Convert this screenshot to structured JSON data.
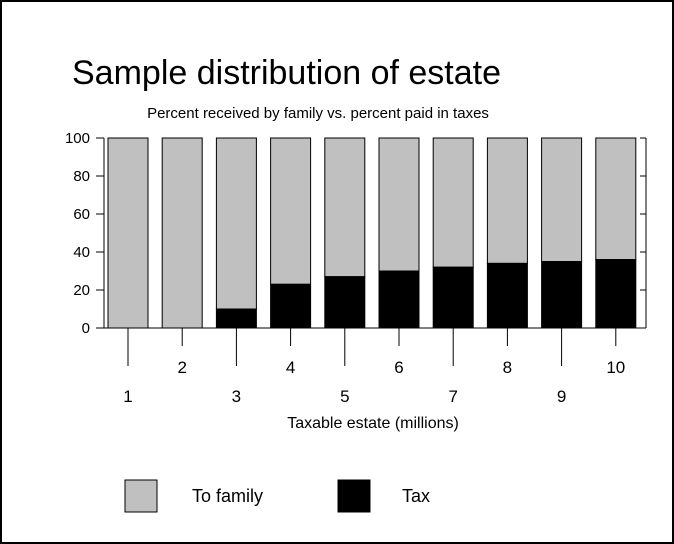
{
  "chart_data": {
    "type": "bar",
    "stacked": true,
    "title": "Sample distribution of estate",
    "subtitle": "Percent received by family vs. percent paid in taxes",
    "xlabel": "Taxable estate (millions)",
    "ylabel": "",
    "categories": [
      "1",
      "2",
      "3",
      "4",
      "5",
      "6",
      "7",
      "8",
      "9",
      "10"
    ],
    "ylim": [
      0,
      100
    ],
    "yticks": [
      0,
      20,
      40,
      60,
      80,
      100
    ],
    "grid": false,
    "legend_position": "bottom",
    "series": [
      {
        "name": "To family",
        "color": "#c0c0c0",
        "values": [
          100,
          100,
          90,
          77,
          73,
          70,
          68,
          66,
          65,
          64
        ]
      },
      {
        "name": "Tax",
        "color": "#000000",
        "values": [
          0,
          0,
          10,
          23,
          27,
          30,
          32,
          34,
          35,
          36
        ]
      }
    ]
  }
}
